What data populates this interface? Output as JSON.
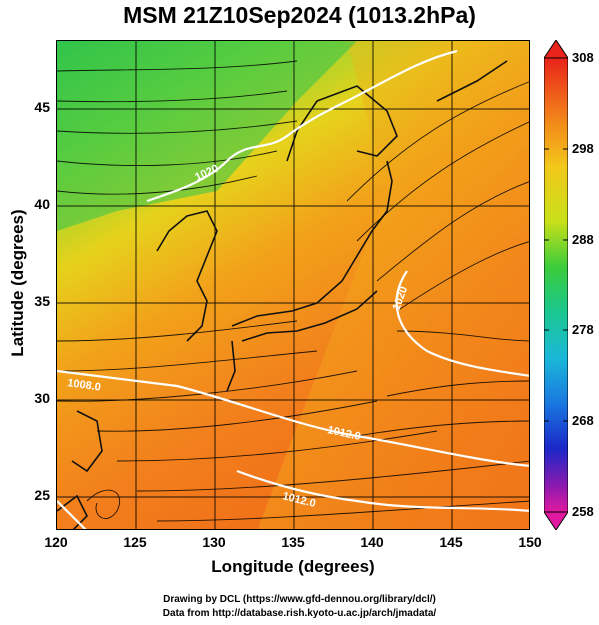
{
  "title": "MSM 21Z10Sep2024 (1013.2hPa)",
  "xlabel": "Longitude (degrees)",
  "ylabel": "Latitude  (degrees)",
  "x_ticks": [
    "120",
    "125",
    "130",
    "135",
    "140",
    "145",
    "150"
  ],
  "y_ticks": [
    "25",
    "30",
    "35",
    "40",
    "45"
  ],
  "colorbar_labels": [
    "308",
    "298",
    "288",
    "278",
    "268",
    "258"
  ],
  "isobar_labels": [
    "1020",
    "1020",
    "1008.0",
    "1012.0",
    "1012.0"
  ],
  "credit_line1": "Drawing by DCL (https://www.gfd-dennou.org/library/dcl/)",
  "credit_line2": "Data from http://database.rish.kyoto-u.ac.jp/arch/jmadata/",
  "map": {
    "lon_range": [
      120,
      150
    ],
    "lat_range": [
      22.5,
      47.6
    ],
    "field": "temperature (K)",
    "color_range": [
      258,
      308
    ],
    "overlay": "streamlines + white isobars"
  },
  "colors": {
    "warm": "#f07a1a",
    "mid": "#f2d21a",
    "cool": "#3cc84a",
    "land": "#1a1a1a",
    "isobar": "#ffffff"
  }
}
